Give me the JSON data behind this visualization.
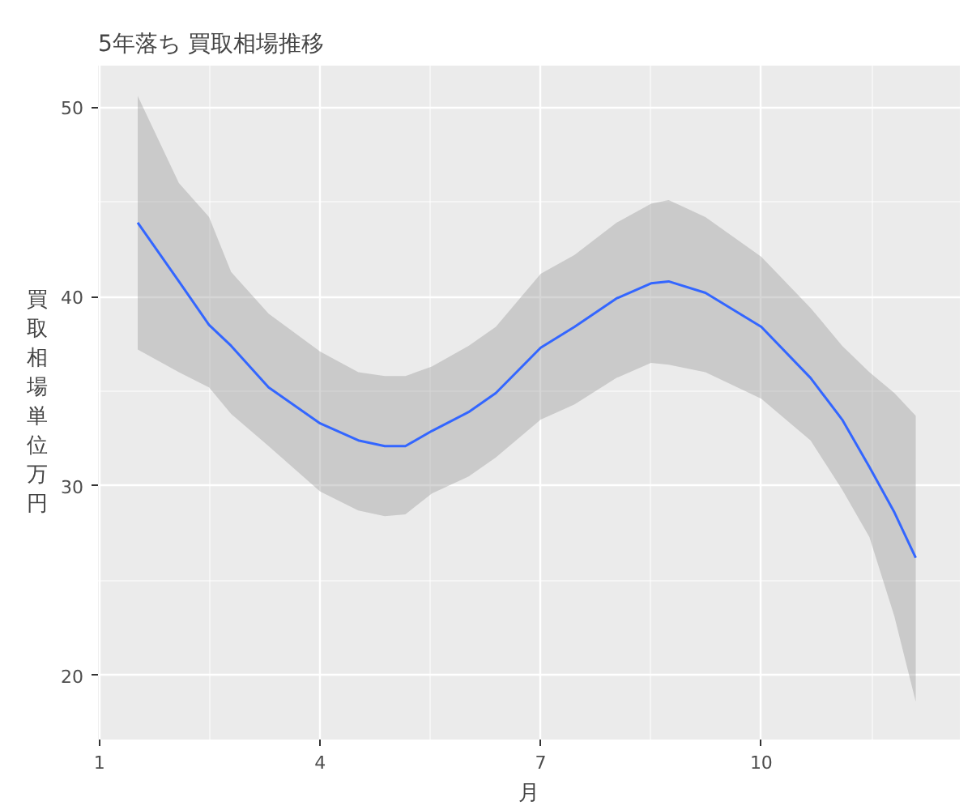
{
  "chart_data": {
    "type": "line",
    "title": "5年落ち 買取相場推移",
    "xlabel": "月",
    "ylabel": "買取相場単位万円",
    "x": [
      1.52,
      2.08,
      2.49,
      2.79,
      3.3,
      4.0,
      4.52,
      4.88,
      5.16,
      5.52,
      6.02,
      6.39,
      7.0,
      7.46,
      8.03,
      8.5,
      8.74,
      9.24,
      10.0,
      10.67,
      11.1,
      11.47,
      11.81,
      12.1
    ],
    "series": [
      {
        "color": "#3366ff",
        "values": [
          43.9,
          40.8,
          38.5,
          37.4,
          35.2,
          33.3,
          32.4,
          32.1,
          32.1,
          32.9,
          33.9,
          34.9,
          37.3,
          38.4,
          39.9,
          40.7,
          40.8,
          40.2,
          38.4,
          35.7,
          33.5,
          31.0,
          28.6,
          26.2
        ],
        "upper": [
          50.6,
          46.0,
          44.2,
          41.3,
          39.1,
          37.1,
          36.0,
          35.8,
          35.8,
          36.3,
          37.4,
          38.4,
          41.2,
          42.2,
          43.9,
          44.9,
          45.1,
          44.2,
          42.1,
          39.4,
          37.4,
          36.0,
          34.9,
          33.7
        ],
        "lower": [
          37.2,
          36.0,
          35.2,
          33.8,
          32.1,
          29.7,
          28.7,
          28.4,
          28.5,
          29.6,
          30.5,
          31.5,
          33.5,
          34.3,
          35.7,
          36.5,
          36.4,
          36.0,
          34.6,
          32.4,
          29.8,
          27.3,
          23.1,
          18.6
        ]
      }
    ],
    "xlim": [
      0.98,
      12.7
    ],
    "ylim": [
      16.6,
      52.2
    ],
    "xticks": [
      1,
      4,
      7,
      10
    ],
    "yticks": [
      20,
      30,
      40,
      50
    ],
    "grid": true,
    "marker": "none",
    "line_style": "solid"
  }
}
